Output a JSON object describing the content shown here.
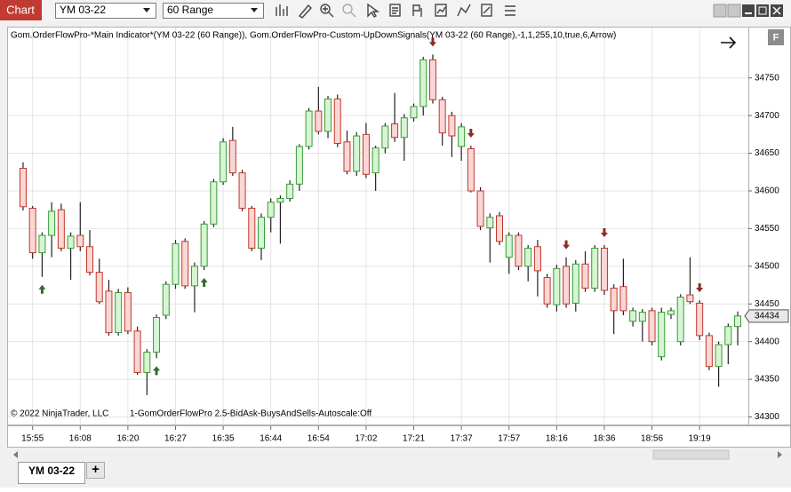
{
  "toolbar": {
    "app": "Chart",
    "instrument": "YM 03-22",
    "interval": "60 Range"
  },
  "tab": {
    "label": "YM 03-22",
    "add": "+"
  },
  "chart_data": {
    "type": "candlestick",
    "indicator_label": "Gom.OrderFlowPro-*Main Indicator*(YM 03-22 (60 Range)), Gom.OrderFlowPro-Custom-UpDownSignals(YM 03-22 (60 Range),-1,1,255,10,true,6,Arrow)",
    "copyright": "© 2022 NinjaTrader, LLC",
    "footer_label": "1-GomOrderFlowPro 2.5-BidAsk-BuysAndSells-Autoscale:Off",
    "panel_badge": "F",
    "categories": [
      null,
      "15:55",
      null,
      null,
      null,
      null,
      "16:08",
      null,
      null,
      null,
      null,
      "16:20",
      null,
      null,
      null,
      null,
      "16:27",
      null,
      null,
      null,
      null,
      "16:35",
      null,
      null,
      null,
      null,
      "16:44",
      null,
      null,
      null,
      null,
      "16:54",
      null,
      null,
      null,
      null,
      "17:02",
      null,
      null,
      null,
      null,
      "17:21",
      null,
      null,
      null,
      null,
      "17:37",
      null,
      null,
      null,
      null,
      "17:57",
      null,
      null,
      null,
      null,
      "18:16",
      null,
      null,
      null,
      null,
      "18:36",
      null,
      null,
      null,
      null,
      "18:56",
      null,
      null,
      null,
      null,
      "19:19",
      null,
      null,
      null,
      null
    ],
    "open": [
      34630,
      34577,
      34518,
      34541,
      34575,
      34524,
      34541,
      34526,
      34492,
      34467,
      34412,
      34465,
      34414,
      34359,
      34386,
      34435,
      34476,
      34533,
      34474,
      34500,
      34556,
      34612,
      34667,
      34624,
      34577,
      34524,
      34565,
      34585,
      34590,
      34609,
      34659,
      34706,
      34679,
      34722,
      34665,
      34626,
      34675,
      34624,
      34657,
      34689,
      34671,
      34697,
      34712,
      34774,
      34721,
      34700,
      34659,
      34656,
      34600,
      34551,
      34567,
      34512,
      34541,
      34500,
      34526,
      34485,
      34449,
      34500,
      34451,
      34503,
      34471,
      34524,
      34471,
      34473,
      34427,
      34427,
      34441,
      34380,
      34436,
      34400,
      34462,
      34451,
      34408,
      34367,
      34396,
      34420
    ],
    "high": [
      34638,
      34580,
      34545,
      34585,
      34583,
      34545,
      34585,
      34548,
      34510,
      34482,
      34470,
      34472,
      34420,
      34390,
      34436,
      34480,
      34535,
      34537,
      34505,
      34560,
      34616,
      34670,
      34685,
      34628,
      34580,
      34570,
      34590,
      34594,
      34614,
      34662,
      34710,
      34738,
      34726,
      34728,
      34680,
      34678,
      34690,
      34660,
      34690,
      34730,
      34702,
      34716,
      34778,
      34781,
      34725,
      34705,
      34690,
      34660,
      34605,
      34570,
      34572,
      34545,
      34545,
      34528,
      34535,
      34490,
      34502,
      34512,
      34508,
      34520,
      34528,
      34528,
      34476,
      34510,
      34445,
      34443,
      34445,
      34445,
      34445,
      34463,
      34512,
      34455,
      34412,
      34400,
      34424,
      34440
    ],
    "low": [
      34574,
      34510,
      34486,
      34512,
      34520,
      34482,
      34520,
      34488,
      34450,
      34408,
      34408,
      34410,
      34356,
      34329,
      34378,
      34430,
      34470,
      34470,
      34439,
      34495,
      34552,
      34608,
      34620,
      34573,
      34520,
      34508,
      34545,
      34530,
      34586,
      34600,
      34655,
      34675,
      34670,
      34658,
      34622,
      34620,
      34617,
      34600,
      34650,
      34665,
      34640,
      34692,
      34700,
      34716,
      34660,
      34645,
      34640,
      34598,
      34548,
      34505,
      34528,
      34490,
      34495,
      34480,
      34460,
      34445,
      34440,
      34445,
      34440,
      34466,
      34466,
      34462,
      34410,
      34435,
      34420,
      34400,
      34395,
      34375,
      34430,
      34395,
      34450,
      34402,
      34362,
      34340,
      34370,
      34395
    ],
    "close": [
      34579,
      34518,
      34541,
      34573,
      34524,
      34540,
      34526,
      34492,
      34453,
      34412,
      34465,
      34414,
      34359,
      34386,
      34432,
      34476,
      34530,
      34474,
      34500,
      34556,
      34612,
      34665,
      34624,
      34577,
      34524,
      34565,
      34585,
      34590,
      34609,
      34659,
      34706,
      34679,
      34722,
      34663,
      34626,
      34673,
      34622,
      34657,
      34686,
      34671,
      34697,
      34712,
      34774,
      34721,
      34677,
      34673,
      34685,
      34600,
      34553,
      34565,
      34533,
      34541,
      34500,
      34524,
      34494,
      34450,
      34497,
      34450,
      34503,
      34471,
      34524,
      34468,
      34441,
      34441,
      34441,
      34439,
      34400,
      34439,
      34441,
      34459,
      34453,
      34408,
      34367,
      34396,
      34420,
      34434
    ],
    "up_color": "#d6f5d2",
    "up_border": "#3a9a3a",
    "down_color": "#fad6d6",
    "down_border": "#c0392b",
    "wick_color": "#222222",
    "ylim": [
      34290,
      34818
    ],
    "yticks": [
      34300,
      34350,
      34400,
      34450,
      34500,
      34550,
      34600,
      34650,
      34700,
      34750
    ],
    "grid": true,
    "last_price": 34434
  }
}
